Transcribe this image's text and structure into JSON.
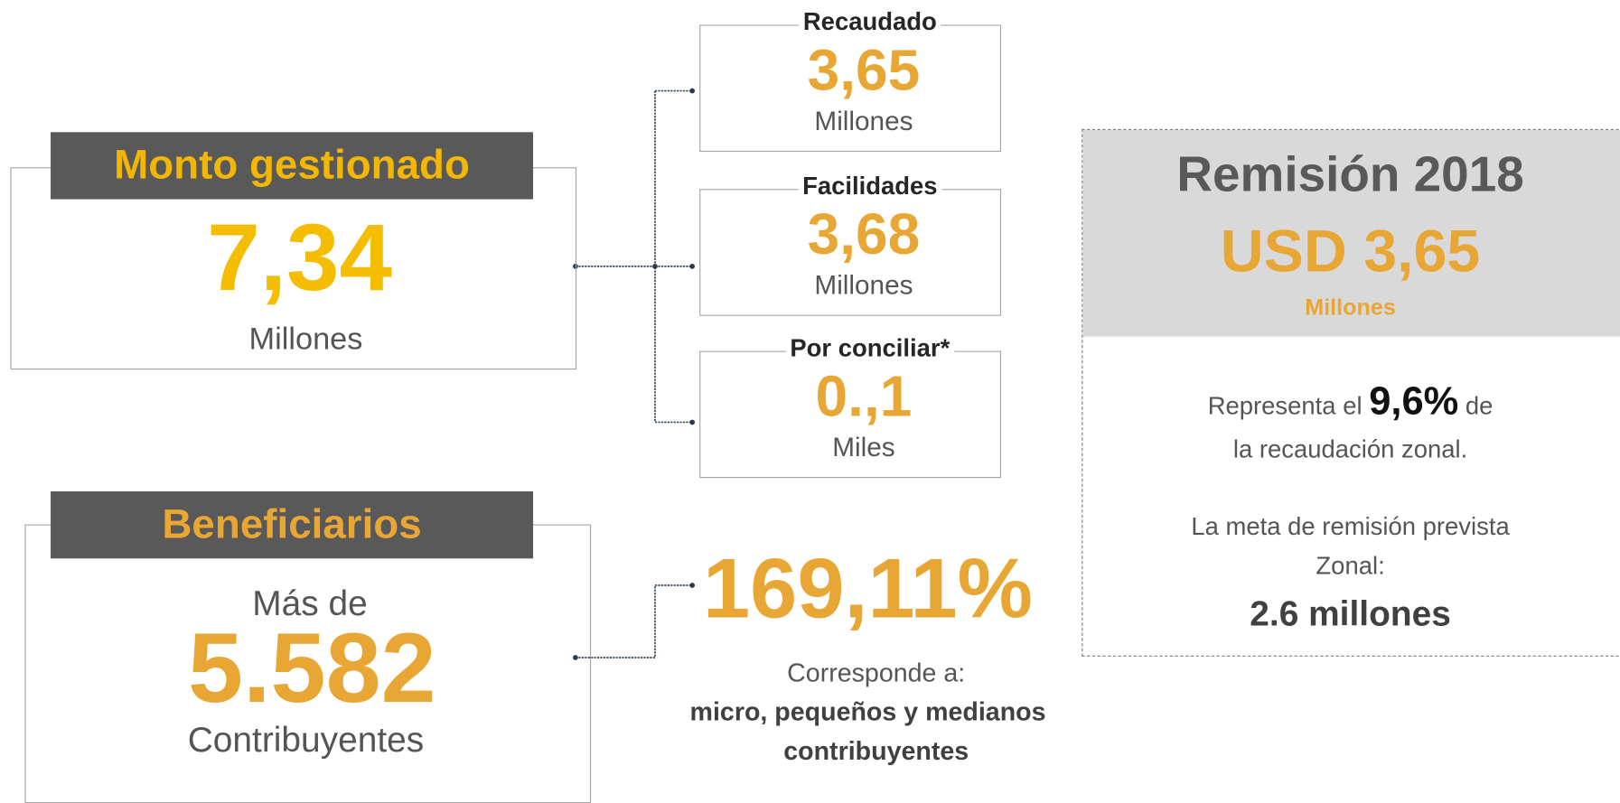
{
  "monto": {
    "title": "Monto gestionado",
    "value": "7,34",
    "unit": "Millones"
  },
  "breakdown": [
    {
      "label": "Recaudado",
      "value": "3,65",
      "unit": "Millones"
    },
    {
      "label": "Facilidades",
      "value": "3,68",
      "unit": "Millones"
    },
    {
      "label": "Por conciliar*",
      "value": "0.,1",
      "unit": "Miles"
    }
  ],
  "beneficiarios": {
    "title": "Beneficiarios",
    "prefix": "Más de",
    "value": "5.582",
    "unit": "Contribuyentes"
  },
  "percentage": {
    "value": "169,11%",
    "caption": "Corresponde a:",
    "detail": [
      "micro, pequeños y medianos",
      "contribuyentes"
    ]
  },
  "remision": {
    "title": "Remisión 2018",
    "value": "USD 3,65",
    "unit": "Millones",
    "represent": [
      "Representa",
      "el",
      "9,6%",
      "de"
    ],
    "line2": "la recaudación zonal.",
    "meta": [
      "La meta de remisión prevista",
      "Zonal:"
    ],
    "meta_value": "2.6 millones"
  }
}
